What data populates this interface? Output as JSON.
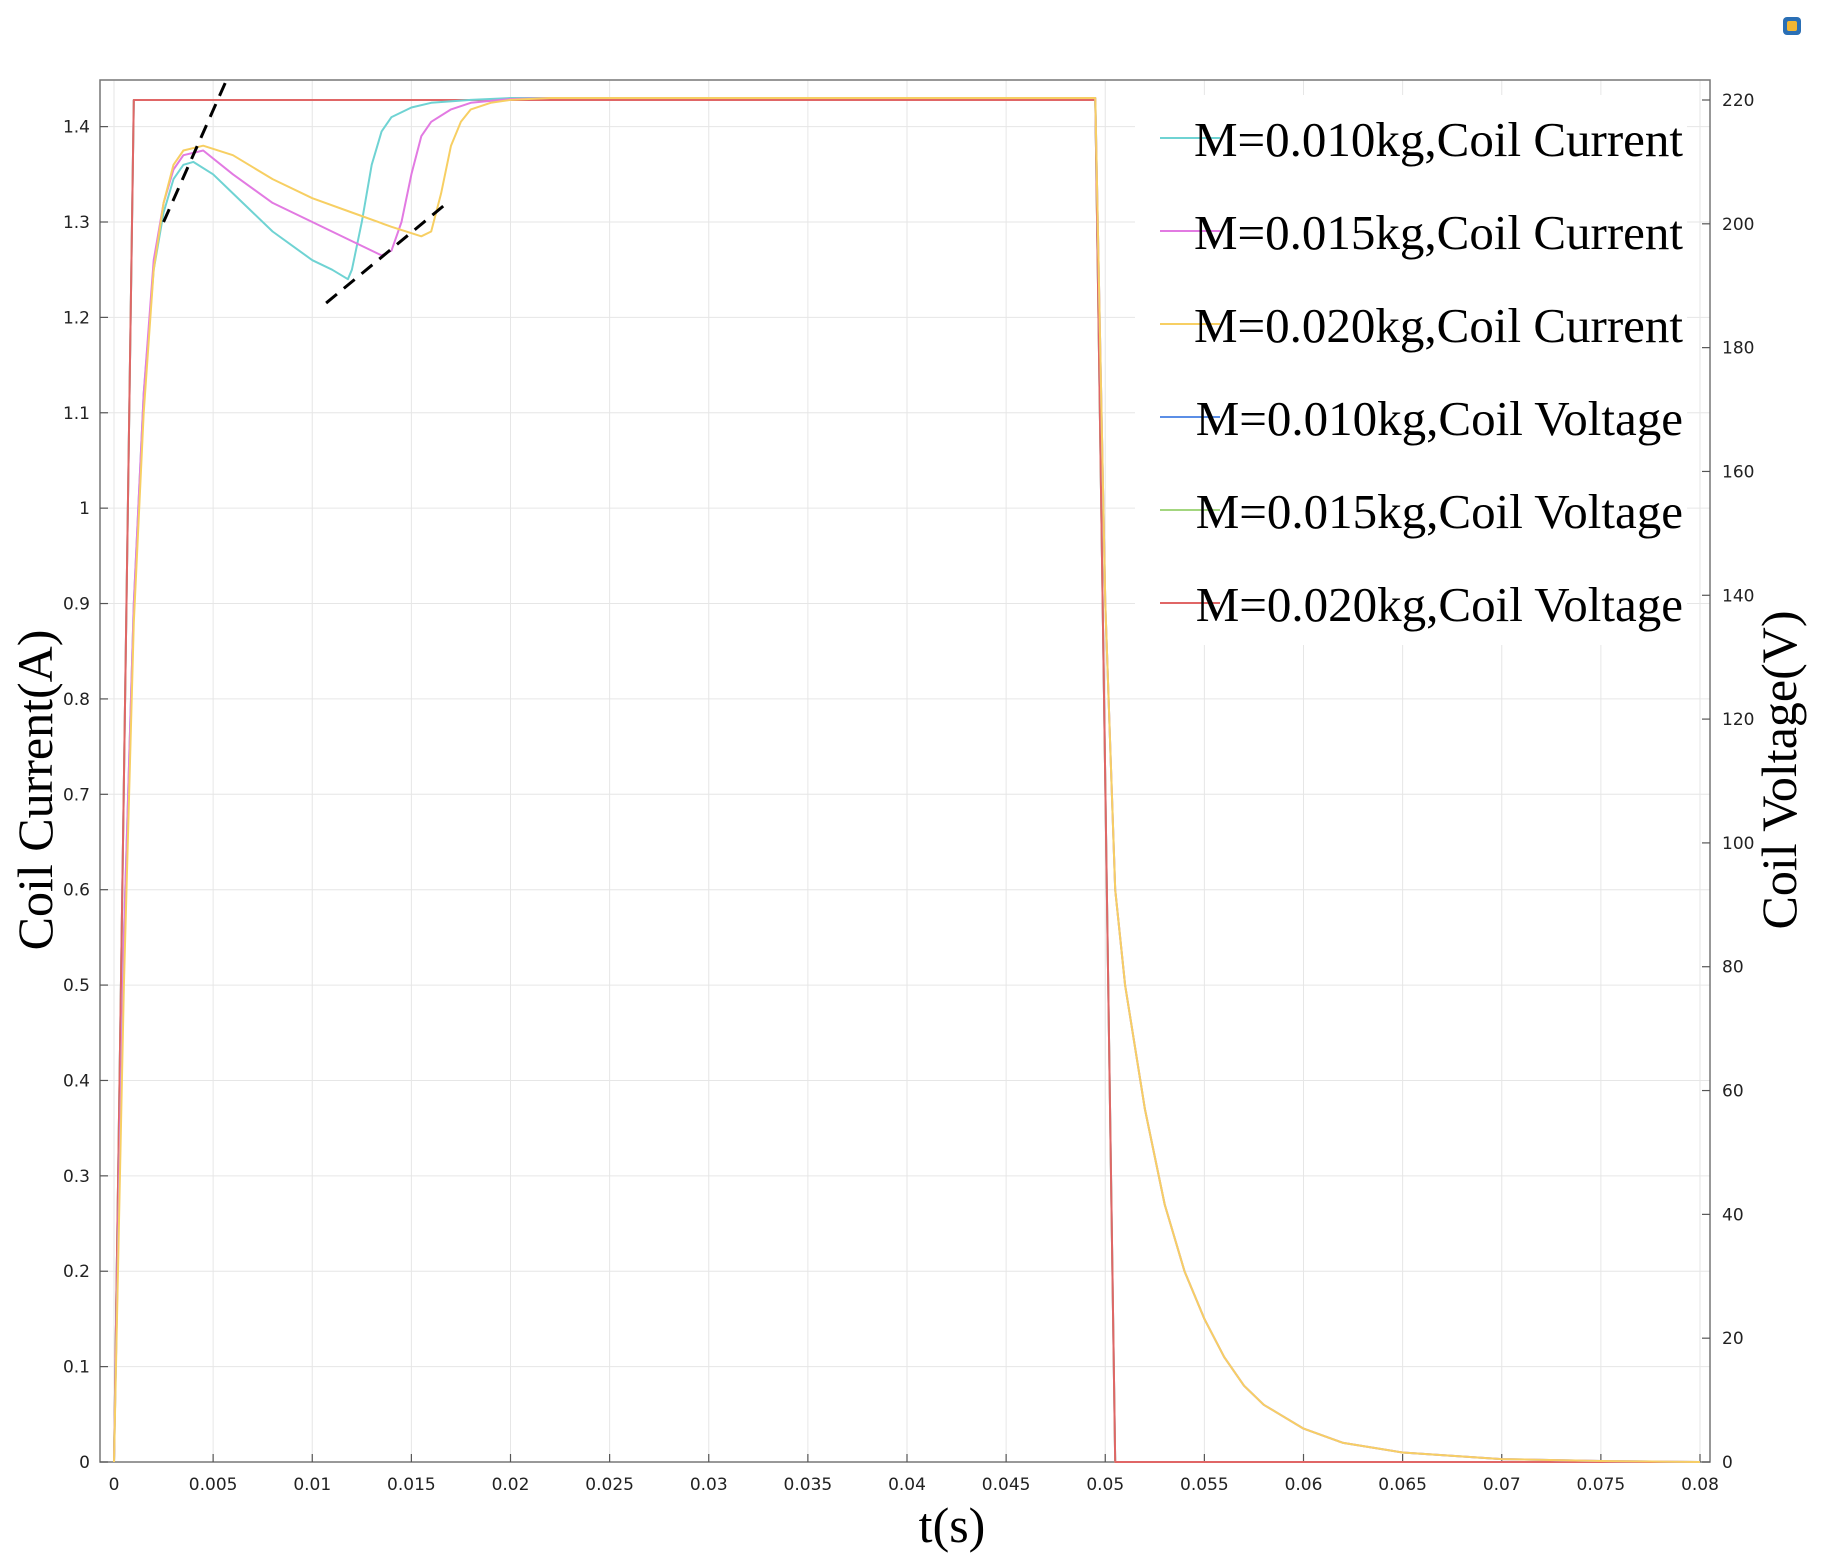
{
  "chart_data": {
    "type": "line",
    "xlabel": "t(s)",
    "ylabel_left": "Coil Current(A)",
    "ylabel_right": "Coil Voltage(V)",
    "xlim": [
      0,
      0.08
    ],
    "ylim_left": [
      0,
      1.43
    ],
    "ylim_right": [
      0,
      220
    ],
    "x_ticks": [
      "0",
      "0.005",
      "0.01",
      "0.015",
      "0.02",
      "0.025",
      "0.03",
      "0.035",
      "0.04",
      "0.045",
      "0.05",
      "0.055",
      "0.06",
      "0.065",
      "0.07",
      "0.075",
      "0.08"
    ],
    "y_ticks_left": [
      "0",
      "0.1",
      "0.2",
      "0.3",
      "0.4",
      "0.5",
      "0.6",
      "0.7",
      "0.8",
      "0.9",
      "1",
      "1.1",
      "1.2",
      "1.3",
      "1.4"
    ],
    "y_ticks_right": [
      "0",
      "20",
      "40",
      "60",
      "80",
      "100",
      "120",
      "140",
      "160",
      "180",
      "200",
      "220"
    ],
    "grid": true,
    "legend_position": "top-right",
    "series": [
      {
        "name": "M=0.010kg,Coil Current",
        "axis": "left",
        "color": "#6fd3d3",
        "points": [
          [
            0,
            0
          ],
          [
            0.0005,
            0.55
          ],
          [
            0.001,
            0.9
          ],
          [
            0.0015,
            1.12
          ],
          [
            0.002,
            1.25
          ],
          [
            0.0025,
            1.31
          ],
          [
            0.003,
            1.345
          ],
          [
            0.0035,
            1.36
          ],
          [
            0.004,
            1.363
          ],
          [
            0.005,
            1.35
          ],
          [
            0.006,
            1.33
          ],
          [
            0.007,
            1.31
          ],
          [
            0.008,
            1.29
          ],
          [
            0.009,
            1.275
          ],
          [
            0.01,
            1.26
          ],
          [
            0.011,
            1.25
          ],
          [
            0.0118,
            1.24
          ],
          [
            0.012,
            1.25
          ],
          [
            0.0125,
            1.3
          ],
          [
            0.013,
            1.36
          ],
          [
            0.0135,
            1.395
          ],
          [
            0.014,
            1.41
          ],
          [
            0.015,
            1.42
          ],
          [
            0.016,
            1.425
          ],
          [
            0.018,
            1.428
          ],
          [
            0.02,
            1.43
          ],
          [
            0.0495,
            1.43
          ],
          [
            0.05,
            0.9
          ],
          [
            0.0505,
            0.6
          ],
          [
            0.051,
            0.5
          ],
          [
            0.052,
            0.37
          ],
          [
            0.053,
            0.27
          ],
          [
            0.054,
            0.2
          ],
          [
            0.055,
            0.15
          ],
          [
            0.056,
            0.11
          ],
          [
            0.057,
            0.08
          ],
          [
            0.058,
            0.06
          ],
          [
            0.06,
            0.035
          ],
          [
            0.062,
            0.02
          ],
          [
            0.065,
            0.01
          ],
          [
            0.07,
            0.003
          ],
          [
            0.075,
            0.001
          ],
          [
            0.08,
            0
          ]
        ]
      },
      {
        "name": "M=0.015kg,Coil Current",
        "axis": "left",
        "color": "#e27ae2",
        "points": [
          [
            0,
            0
          ],
          [
            0.0005,
            0.55
          ],
          [
            0.001,
            0.9
          ],
          [
            0.0015,
            1.12
          ],
          [
            0.002,
            1.26
          ],
          [
            0.0025,
            1.32
          ],
          [
            0.003,
            1.355
          ],
          [
            0.0035,
            1.37
          ],
          [
            0.0045,
            1.375
          ],
          [
            0.006,
            1.35
          ],
          [
            0.008,
            1.32
          ],
          [
            0.01,
            1.3
          ],
          [
            0.012,
            1.28
          ],
          [
            0.0135,
            1.265
          ],
          [
            0.014,
            1.27
          ],
          [
            0.0145,
            1.3
          ],
          [
            0.015,
            1.35
          ],
          [
            0.0155,
            1.39
          ],
          [
            0.016,
            1.405
          ],
          [
            0.017,
            1.418
          ],
          [
            0.018,
            1.425
          ],
          [
            0.02,
            1.429
          ],
          [
            0.022,
            1.43
          ],
          [
            0.0495,
            1.43
          ],
          [
            0.05,
            0.9
          ],
          [
            0.0505,
            0.6
          ],
          [
            0.051,
            0.5
          ],
          [
            0.052,
            0.37
          ],
          [
            0.053,
            0.27
          ],
          [
            0.054,
            0.2
          ],
          [
            0.055,
            0.15
          ],
          [
            0.056,
            0.11
          ],
          [
            0.057,
            0.08
          ],
          [
            0.058,
            0.06
          ],
          [
            0.06,
            0.035
          ],
          [
            0.062,
            0.02
          ],
          [
            0.065,
            0.01
          ],
          [
            0.07,
            0.003
          ],
          [
            0.075,
            0.001
          ],
          [
            0.08,
            0
          ]
        ]
      },
      {
        "name": "M=0.020kg,Coil Current",
        "axis": "left",
        "color": "#f7cf63",
        "points": [
          [
            0,
            0
          ],
          [
            0.0005,
            0.5
          ],
          [
            0.001,
            0.88
          ],
          [
            0.0015,
            1.1
          ],
          [
            0.002,
            1.25
          ],
          [
            0.0025,
            1.32
          ],
          [
            0.003,
            1.36
          ],
          [
            0.0035,
            1.375
          ],
          [
            0.0045,
            1.38
          ],
          [
            0.006,
            1.37
          ],
          [
            0.008,
            1.345
          ],
          [
            0.01,
            1.325
          ],
          [
            0.012,
            1.31
          ],
          [
            0.014,
            1.295
          ],
          [
            0.0155,
            1.285
          ],
          [
            0.016,
            1.29
          ],
          [
            0.0165,
            1.33
          ],
          [
            0.017,
            1.38
          ],
          [
            0.0175,
            1.405
          ],
          [
            0.018,
            1.418
          ],
          [
            0.019,
            1.425
          ],
          [
            0.02,
            1.428
          ],
          [
            0.022,
            1.43
          ],
          [
            0.0495,
            1.43
          ],
          [
            0.05,
            0.9
          ],
          [
            0.0505,
            0.6
          ],
          [
            0.051,
            0.5
          ],
          [
            0.052,
            0.37
          ],
          [
            0.053,
            0.27
          ],
          [
            0.054,
            0.2
          ],
          [
            0.055,
            0.15
          ],
          [
            0.056,
            0.11
          ],
          [
            0.057,
            0.08
          ],
          [
            0.058,
            0.06
          ],
          [
            0.06,
            0.035
          ],
          [
            0.062,
            0.02
          ],
          [
            0.065,
            0.01
          ],
          [
            0.07,
            0.003
          ],
          [
            0.075,
            0.001
          ],
          [
            0.08,
            0
          ]
        ]
      },
      {
        "name": "M=0.010kg,Coil Voltage",
        "axis": "right",
        "color": "#5b8ee6",
        "points": [
          [
            0,
            0
          ],
          [
            0.001,
            220
          ],
          [
            0.0495,
            220
          ],
          [
            0.0505,
            0
          ],
          [
            0.08,
            0
          ]
        ]
      },
      {
        "name": "M=0.015kg,Coil Voltage",
        "axis": "right",
        "color": "#a3d67f",
        "points": [
          [
            0,
            0
          ],
          [
            0.001,
            220
          ],
          [
            0.0495,
            220
          ],
          [
            0.0505,
            0
          ],
          [
            0.08,
            0
          ]
        ]
      },
      {
        "name": "M=0.020kg,Coil Voltage",
        "axis": "right",
        "color": "#e06666",
        "points": [
          [
            0,
            0
          ],
          [
            0.001,
            220
          ],
          [
            0.0495,
            220
          ],
          [
            0.0505,
            0
          ],
          [
            0.08,
            0
          ]
        ]
      }
    ],
    "annotations": [
      {
        "type": "dashed-line",
        "points": [
          [
            0.0025,
            1.3
          ],
          [
            0.0057,
            1.45
          ]
        ]
      },
      {
        "type": "dashed-line",
        "points": [
          [
            0.0107,
            1.215
          ],
          [
            0.0168,
            1.32
          ]
        ]
      }
    ]
  }
}
